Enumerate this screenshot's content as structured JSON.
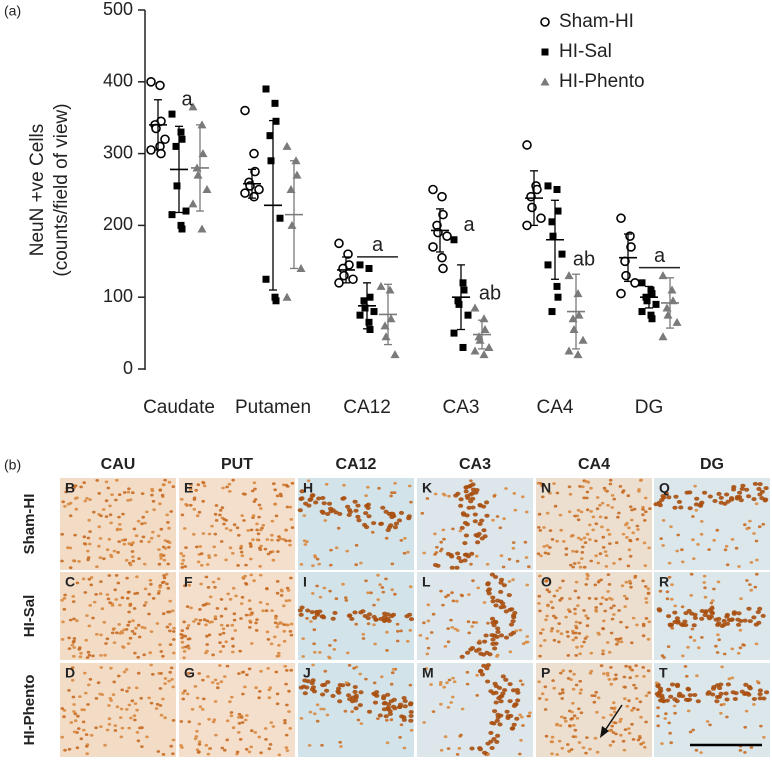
{
  "chart_data": {
    "type": "dot",
    "panel_label": "(a)",
    "y_label": [
      "NeuN +ve Cells",
      "(counts/field of view)"
    ],
    "categories": [
      "Caudate",
      "Putamen",
      "CA12",
      "CA3",
      "CA4",
      "DG"
    ],
    "ylim": [
      0,
      500
    ],
    "yticks": [
      0,
      100,
      200,
      300,
      400,
      500
    ],
    "series": [
      {
        "name": "Sham-HI",
        "color": "#000000",
        "marker": "circle-open",
        "values": [
          [
            400,
            395,
            345,
            340,
            335,
            320,
            305,
            310,
            300
          ],
          [
            360,
            300,
            275,
            260,
            255,
            250,
            245,
            240
          ],
          [
            175,
            160,
            145,
            140,
            130,
            125,
            120
          ],
          [
            250,
            240,
            215,
            200,
            190,
            185,
            170,
            155,
            140
          ],
          [
            312,
            255,
            250,
            240,
            225,
            210,
            200
          ],
          [
            210,
            185,
            170,
            150,
            130,
            120,
            105
          ]
        ],
        "mean": [
          340,
          258,
          138,
          193,
          238,
          155
        ],
        "sd": [
          35,
          20,
          18,
          30,
          38,
          33
        ]
      },
      {
        "name": "HI-Sal",
        "color": "#000000",
        "marker": "square",
        "values": [
          [
            355,
            330,
            320,
            310,
            255,
            220,
            215,
            200,
            195
          ],
          [
            390,
            370,
            345,
            325,
            290,
            210,
            125,
            100,
            95
          ],
          [
            145,
            140,
            100,
            95,
            85,
            80,
            75,
            65,
            55
          ],
          [
            180,
            120,
            110,
            95,
            90,
            75,
            50,
            30
          ],
          [
            255,
            250,
            220,
            205,
            185,
            160,
            145,
            115,
            100,
            80
          ],
          [
            120,
            110,
            105,
            100,
            95,
            90,
            80,
            75,
            70
          ]
        ],
        "mean": [
          278,
          228,
          88,
          100,
          180,
          100
        ],
        "sd": [
          60,
          118,
          32,
          45,
          55,
          15
        ]
      },
      {
        "name": "HI-Phento",
        "color": "#7a7a7a",
        "marker": "triangle",
        "values": [
          [
            365,
            340,
            300,
            280,
            270,
            250,
            230,
            195
          ],
          [
            310,
            290,
            270,
            250,
            200,
            140,
            100
          ],
          [
            115,
            110,
            70,
            60,
            45,
            20
          ],
          [
            85,
            70,
            55,
            45,
            40,
            30,
            25,
            20
          ],
          [
            130,
            105,
            75,
            70,
            55,
            40,
            25,
            20
          ],
          [
            130,
            110,
            95,
            85,
            75,
            65,
            45
          ]
        ],
        "mean": [
          280,
          215,
          76,
          48,
          80,
          92
        ],
        "sd": [
          60,
          75,
          42,
          20,
          52,
          35
        ]
      }
    ],
    "annotations": [
      {
        "text": "a",
        "category": "Caudate",
        "series": [
          "HI-Sal"
        ],
        "line": false
      },
      {
        "text": "a",
        "category": "CA12",
        "series": [
          "HI-Sal",
          "HI-Phento"
        ],
        "line": true
      },
      {
        "text": "a",
        "category": "CA3",
        "series": [
          "HI-Sal"
        ],
        "line": false
      },
      {
        "text": "ab",
        "category": "CA3",
        "series": [
          "HI-Phento"
        ],
        "line": false
      },
      {
        "text": "ab",
        "category": "CA4",
        "series": [
          "HI-Phento"
        ],
        "line": false
      },
      {
        "text": "a",
        "category": "DG",
        "series": [
          "HI-Sal",
          "HI-Phento"
        ],
        "line": true
      }
    ],
    "legend": "top-right"
  },
  "panel_b": {
    "label": "(b)",
    "columns": [
      "CAU",
      "PUT",
      "CA12",
      "CA3",
      "CA4",
      "DG"
    ],
    "rows": [
      "Sham-HI",
      "HI-Sal",
      "HI-Phento"
    ],
    "panels": [
      [
        "B",
        "E",
        "H",
        "K",
        "N",
        "Q"
      ],
      [
        "C",
        "F",
        "I",
        "L",
        "O",
        "R"
      ],
      [
        "D",
        "G",
        "J",
        "M",
        "P",
        "T"
      ]
    ]
  }
}
